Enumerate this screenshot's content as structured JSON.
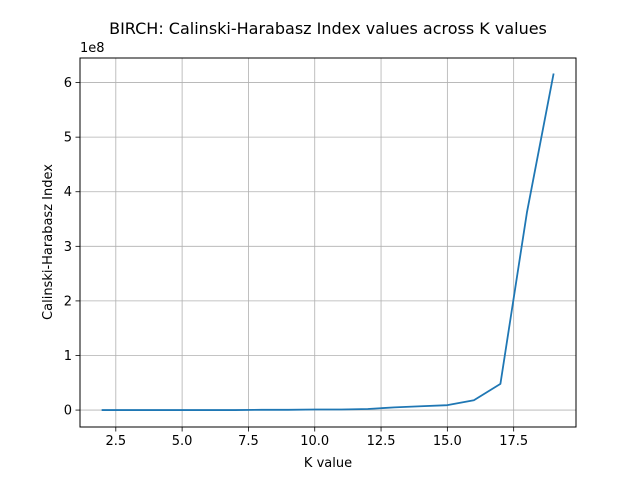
{
  "chart_data": {
    "type": "line",
    "title": "BIRCH: Calinski-Harabasz Index values across K values",
    "xlabel": "K value",
    "ylabel": "Calinski-Harabasz Index",
    "y_offset_label": "1e8",
    "xlim": [
      1.15,
      19.85
    ],
    "ylim": [
      -0.31,
      6.45
    ],
    "y_scale_multiplier": 100000000,
    "grid": true,
    "x_ticks": [
      {
        "value": 2.5,
        "label": "2.5"
      },
      {
        "value": 5.0,
        "label": "5.0"
      },
      {
        "value": 7.5,
        "label": "7.5"
      },
      {
        "value": 10.0,
        "label": "10.0"
      },
      {
        "value": 12.5,
        "label": "12.5"
      },
      {
        "value": 15.0,
        "label": "15.0"
      },
      {
        "value": 17.5,
        "label": "17.5"
      }
    ],
    "y_ticks": [
      {
        "value": 0,
        "label": "0"
      },
      {
        "value": 1,
        "label": "1"
      },
      {
        "value": 2,
        "label": "2"
      },
      {
        "value": 3,
        "label": "3"
      },
      {
        "value": 4,
        "label": "4"
      },
      {
        "value": 5,
        "label": "5"
      },
      {
        "value": 6,
        "label": "6"
      }
    ],
    "series": [
      {
        "color": "#1f77b4",
        "x": [
          2,
          3,
          4,
          5,
          6,
          7,
          8,
          9,
          10,
          11,
          12,
          13,
          14,
          15,
          16,
          17,
          18,
          19
        ],
        "y": [
          0.0,
          0.0,
          0.0,
          0.0,
          0.0,
          0.0,
          0.005,
          0.005,
          0.01,
          0.01,
          0.02,
          0.05,
          0.07,
          0.09,
          0.18,
          0.48,
          3.62,
          6.15
        ]
      }
    ]
  }
}
